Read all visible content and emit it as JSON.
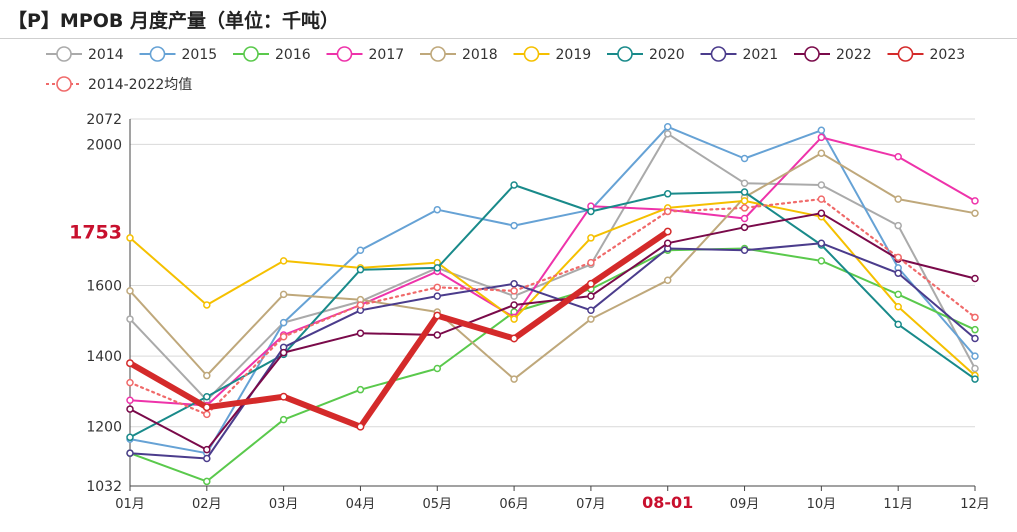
{
  "title": "【P】MPOB 月度产量（单位：千吨）",
  "chart_data": {
    "type": "line",
    "title": "【P】MPOB 月度产量（单位：千吨）",
    "categories": [
      "01月",
      "02月",
      "03月",
      "04月",
      "05月",
      "06月",
      "07月",
      "08-01",
      "09月",
      "10月",
      "11月",
      "12月"
    ],
    "highlight_category_index": 7,
    "ylim": [
      1032,
      2072
    ],
    "yticks": [
      "1032",
      "1200",
      "1400",
      "1600",
      "2000",
      "2072"
    ],
    "grid": true,
    "legend_position": "top",
    "current_value_label": "1753",
    "series": [
      {
        "name": "2014",
        "color": "#aaaaaa",
        "style": "solid",
        "values": [
          1505,
          1275,
          1495,
          1555,
          1650,
          1570,
          1660,
          2030,
          1890,
          1885,
          1770,
          1365
        ]
      },
      {
        "name": "2015",
        "color": "#66a2d5",
        "style": "solid",
        "values": [
          1165,
          1125,
          1495,
          1700,
          1815,
          1770,
          1815,
          2050,
          1960,
          2040,
          1650,
          1400
        ]
      },
      {
        "name": "2016",
        "color": "#5ac94c",
        "style": "solid",
        "values": [
          1125,
          1045,
          1220,
          1305,
          1365,
          1525,
          1590,
          1700,
          1705,
          1670,
          1575,
          1475
        ]
      },
      {
        "name": "2017",
        "color": "#ee33aa",
        "style": "solid",
        "values": [
          1275,
          1260,
          1460,
          1545,
          1640,
          1510,
          1825,
          1815,
          1790,
          2020,
          1965,
          1840
        ]
      },
      {
        "name": "2018",
        "color": "#bfa87b",
        "style": "solid",
        "values": [
          1585,
          1345,
          1575,
          1560,
          1525,
          1335,
          1505,
          1615,
          1850,
          1975,
          1845,
          1805
        ]
      },
      {
        "name": "2019",
        "color": "#f5c000",
        "style": "solid",
        "values": [
          1735,
          1545,
          1670,
          1650,
          1665,
          1505,
          1735,
          1820,
          1840,
          1795,
          1540,
          1345
        ]
      },
      {
        "name": "2020",
        "color": "#198a8a",
        "style": "solid",
        "values": [
          1170,
          1285,
          1405,
          1645,
          1650,
          1885,
          1810,
          1860,
          1865,
          1715,
          1490,
          1335
        ]
      },
      {
        "name": "2021",
        "color": "#4b3c8c",
        "style": "solid",
        "values": [
          1125,
          1110,
          1425,
          1530,
          1570,
          1605,
          1530,
          1705,
          1700,
          1720,
          1635,
          1450
        ]
      },
      {
        "name": "2022",
        "color": "#7a0a4a",
        "style": "solid",
        "values": [
          1250,
          1135,
          1410,
          1465,
          1460,
          1545,
          1570,
          1720,
          1765,
          1805,
          1675,
          1620
        ]
      },
      {
        "name": "2023",
        "color": "#d42a2a",
        "style": "bold",
        "values": [
          1380,
          1255,
          1285,
          1200,
          1515,
          1450,
          1605,
          1753,
          null,
          null,
          null,
          null
        ]
      },
      {
        "name": "2014-2022均值",
        "color": "#f06a6a",
        "style": "dotted",
        "values": [
          1325,
          1235,
          1455,
          1545,
          1595,
          1585,
          1665,
          1810,
          1820,
          1845,
          1680,
          1510
        ]
      }
    ]
  }
}
